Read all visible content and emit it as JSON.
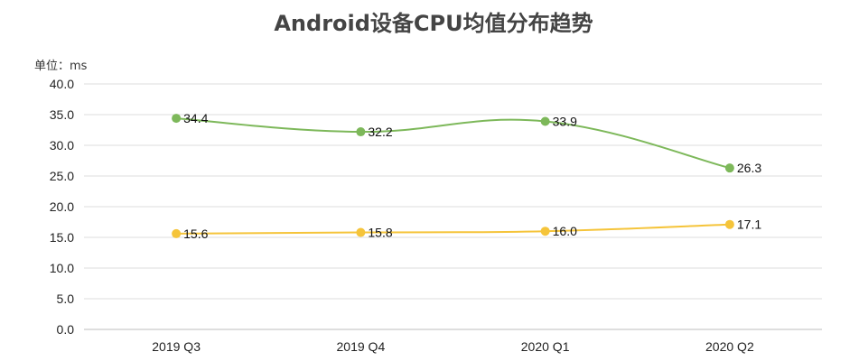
{
  "chart_data": {
    "type": "line",
    "title": "Android设备CPU均值分布趋势",
    "unit_label": "单位：ms",
    "categories": [
      "2019 Q3",
      "2019 Q4",
      "2020 Q1",
      "2020 Q2"
    ],
    "ylim": [
      0,
      40
    ],
    "yticks": [
      "0.0",
      "5.0",
      "10.0",
      "15.0",
      "20.0",
      "25.0",
      "30.0",
      "35.0",
      "40.0"
    ],
    "grid": true,
    "legend": "none",
    "series": [
      {
        "values": [
          34.4,
          32.2,
          33.9,
          26.3
        ],
        "labels": [
          "34.4",
          "32.2",
          "33.9",
          "26.3"
        ],
        "color": "#7db85a"
      },
      {
        "values": [
          15.6,
          15.8,
          16.0,
          17.1
        ],
        "labels": [
          "15.6",
          "15.8",
          "16.0",
          "17.1"
        ],
        "color": "#f5c43a"
      }
    ]
  }
}
